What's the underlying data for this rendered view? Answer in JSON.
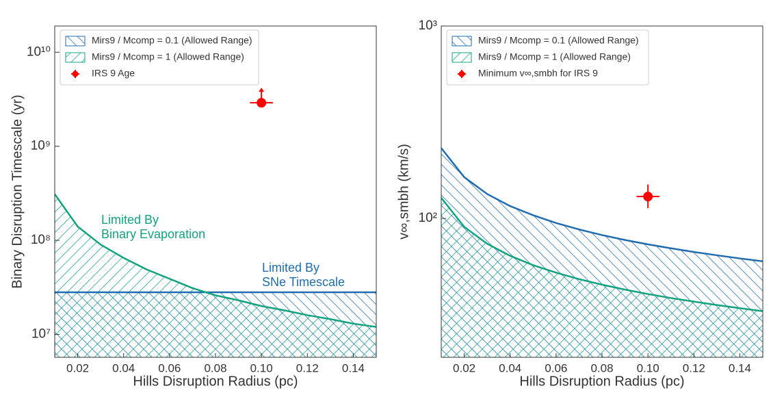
{
  "chart_data": [
    {
      "type": "hatched-area",
      "xlabel": "Hills Disruption Radius (pc)",
      "ylabel": "Binary Disruption Timescale (yr)",
      "log_y": true,
      "xlim": [
        0.01,
        0.15
      ],
      "ylim": [
        5700000,
        19000000000
      ],
      "xticks": [
        0.02,
        0.04,
        0.06,
        0.08,
        {
          "value": 0.1,
          "label": "0.10"
        },
        0.12,
        0.14
      ],
      "yticks": [
        {
          "value": 10000000,
          "label": "10⁷"
        },
        {
          "value": 100000000,
          "label": "10⁸"
        },
        {
          "value": 1000000000,
          "label": "10⁹"
        },
        {
          "value": 10000000000,
          "label": "10¹⁰"
        }
      ],
      "legend": "upper left",
      "x": [
        0.01,
        0.02,
        0.03,
        0.04,
        0.05,
        0.06,
        0.07,
        0.08,
        0.09,
        0.1,
        0.11,
        0.12,
        0.13,
        0.14,
        0.15
      ],
      "series": [
        {
          "name": "Mirs9 / Mcomp = 0.1 (Allowed Range)",
          "color": "#1f6db0",
          "hatch": "backslash",
          "values": [
            28000000,
            28000000,
            28000000,
            28000000,
            28000000,
            28000000,
            28000000,
            28000000,
            28000000,
            28000000,
            28000000,
            28000000,
            28000000,
            28000000,
            28000000
          ]
        },
        {
          "name": "Mirs9 / Mcomp = 1 (Allowed Range)",
          "color": "#12a37e",
          "hatch": "slash",
          "values": [
            310000000,
            140000000,
            90000000,
            65000000,
            49000000,
            39000000,
            31000000,
            26000000,
            23000000,
            20000000,
            18000000,
            16000000,
            14500000,
            13000000,
            12000000
          ]
        }
      ],
      "points": [
        {
          "name": "IRS 9 Age",
          "color": "#ff0000",
          "x": 0.1,
          "y": 2900000000,
          "xerr": 0.005,
          "lower_limit": true
        }
      ],
      "annotations": [
        {
          "lines": [
            "Limited By",
            "Binary Evaporation"
          ],
          "color": "#12a37e"
        },
        {
          "lines": [
            "Limited By",
            "SNe Timescale"
          ],
          "color": "#1f6db0"
        }
      ]
    },
    {
      "type": "hatched-area",
      "xlabel": "Hills Disruption Radius (pc)",
      "ylabel": "v∞,smbh (km/s)",
      "log_y": true,
      "xlim": [
        0.01,
        0.15
      ],
      "ylim": [
        19,
        1000
      ],
      "xticks": [
        0.02,
        0.04,
        0.06,
        0.08,
        {
          "value": 0.1,
          "label": "0.10"
        },
        0.12,
        0.14
      ],
      "yticks": [
        {
          "value": 100,
          "label": "10²"
        },
        {
          "value": 1000,
          "label": "10³"
        }
      ],
      "legend": "upper left",
      "x": [
        0.01,
        0.02,
        0.03,
        0.04,
        0.05,
        0.06,
        0.07,
        0.08,
        0.09,
        0.1,
        0.11,
        0.12,
        0.13,
        0.14,
        0.15
      ],
      "series": [
        {
          "name": "Mirs9 / Mcomp = 0.1 (Allowed Range)",
          "color": "#1f6db0",
          "hatch": "backslash",
          "values": [
            232,
            164,
            134,
            116,
            104,
            94.7,
            87.7,
            82,
            77.3,
            73.4,
            70,
            67,
            64.4,
            62,
            59.9
          ]
        },
        {
          "name": "Mirs9 / Mcomp = 1 (Allowed Range)",
          "color": "#12a37e",
          "hatch": "slash",
          "values": [
            128,
            90.5,
            73.9,
            64,
            57.2,
            52.3,
            48.4,
            45.3,
            42.7,
            40.5,
            38.6,
            37,
            35.5,
            34.2,
            33
          ]
        }
      ],
      "points": [
        {
          "name": "Minimum v∞,smbh for IRS 9",
          "color": "#ff0000",
          "x": 0.1,
          "y": 130,
          "xerr": 0.005,
          "yerr": [
            17,
            20
          ]
        }
      ],
      "annotations": []
    }
  ]
}
